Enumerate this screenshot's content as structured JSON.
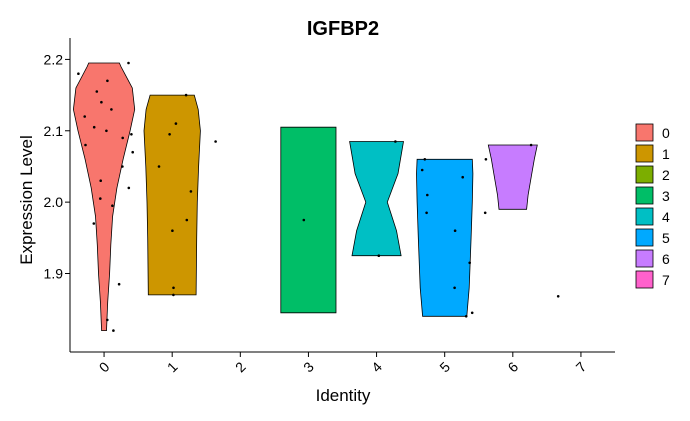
{
  "chart_data": {
    "type": "violin",
    "title": "IGFBP2",
    "xlabel": "Identity",
    "ylabel": "Expression Level",
    "ylim": [
      1.79,
      2.23
    ],
    "yticks": [
      1.9,
      2.0,
      2.1,
      2.2
    ],
    "ytick_labels": [
      "1.9",
      "2.0",
      "2.1",
      "2.2"
    ],
    "categories": [
      "0",
      "1",
      "2",
      "3",
      "4",
      "5",
      "6",
      "7"
    ],
    "colors": [
      "#F8766D",
      "#CD9600",
      "#7CAE00",
      "#00BE67",
      "#00BFC4",
      "#00A9FF",
      "#C77CFF",
      "#FF61CC"
    ],
    "legend_position": "right",
    "grid": false,
    "violins": [
      {
        "group": "0",
        "profile": [
          [
            1.82,
            0.08
          ],
          [
            1.86,
            0.12
          ],
          [
            1.9,
            0.18
          ],
          [
            1.94,
            0.22
          ],
          [
            1.98,
            0.28
          ],
          [
            2.02,
            0.42
          ],
          [
            2.06,
            0.62
          ],
          [
            2.1,
            0.85
          ],
          [
            2.13,
            1.0
          ],
          [
            2.16,
            0.92
          ],
          [
            2.19,
            0.55
          ],
          [
            2.195,
            0.5
          ]
        ]
      },
      {
        "group": "1",
        "profile": [
          [
            1.87,
            0.78
          ],
          [
            1.95,
            0.8
          ],
          [
            2.0,
            0.82
          ],
          [
            2.05,
            0.86
          ],
          [
            2.1,
            0.92
          ],
          [
            2.13,
            0.85
          ],
          [
            2.15,
            0.72
          ]
        ]
      },
      {
        "group": "3",
        "profile": [
          [
            1.845,
            0.9
          ],
          [
            2.105,
            0.9
          ]
        ]
      },
      {
        "group": "4",
        "profile": [
          [
            1.925,
            0.8
          ],
          [
            1.96,
            0.65
          ],
          [
            2.0,
            0.35
          ],
          [
            2.04,
            0.7
          ],
          [
            2.085,
            0.88
          ]
        ]
      },
      {
        "group": "5",
        "profile": [
          [
            1.84,
            0.72
          ],
          [
            1.88,
            0.8
          ],
          [
            1.95,
            0.86
          ],
          [
            2.0,
            0.9
          ],
          [
            2.04,
            0.92
          ],
          [
            2.06,
            0.9
          ]
        ]
      },
      {
        "group": "6",
        "profile": [
          [
            1.99,
            0.45
          ],
          [
            2.01,
            0.5
          ],
          [
            2.04,
            0.62
          ],
          [
            2.06,
            0.7
          ],
          [
            2.08,
            0.8
          ]
        ]
      }
    ],
    "points": [
      {
        "group": "0",
        "values": [
          2.195,
          2.18,
          2.17,
          2.155,
          2.14,
          2.13,
          2.12,
          2.105,
          2.1,
          2.095,
          2.09,
          2.08,
          2.07,
          2.05,
          2.03,
          2.02,
          2.005,
          1.995,
          1.97,
          1.885,
          1.835,
          1.82
        ]
      },
      {
        "group": "1",
        "values": [
          2.15,
          2.11,
          2.095,
          2.05,
          2.015,
          1.975,
          1.96,
          1.88,
          1.87
        ]
      },
      {
        "group": "2",
        "values": [
          2.085
        ]
      },
      {
        "group": "3",
        "values": [
          1.975
        ]
      },
      {
        "group": "4",
        "values": [
          2.085,
          1.925
        ]
      },
      {
        "group": "5",
        "values": [
          2.06,
          2.045,
          2.035,
          2.01,
          1.985,
          1.96,
          1.915,
          1.88,
          1.845,
          1.84
        ]
      },
      {
        "group": "6",
        "values": [
          2.08,
          2.06,
          1.985
        ]
      },
      {
        "group": "7",
        "values": [
          1.868
        ]
      }
    ]
  }
}
